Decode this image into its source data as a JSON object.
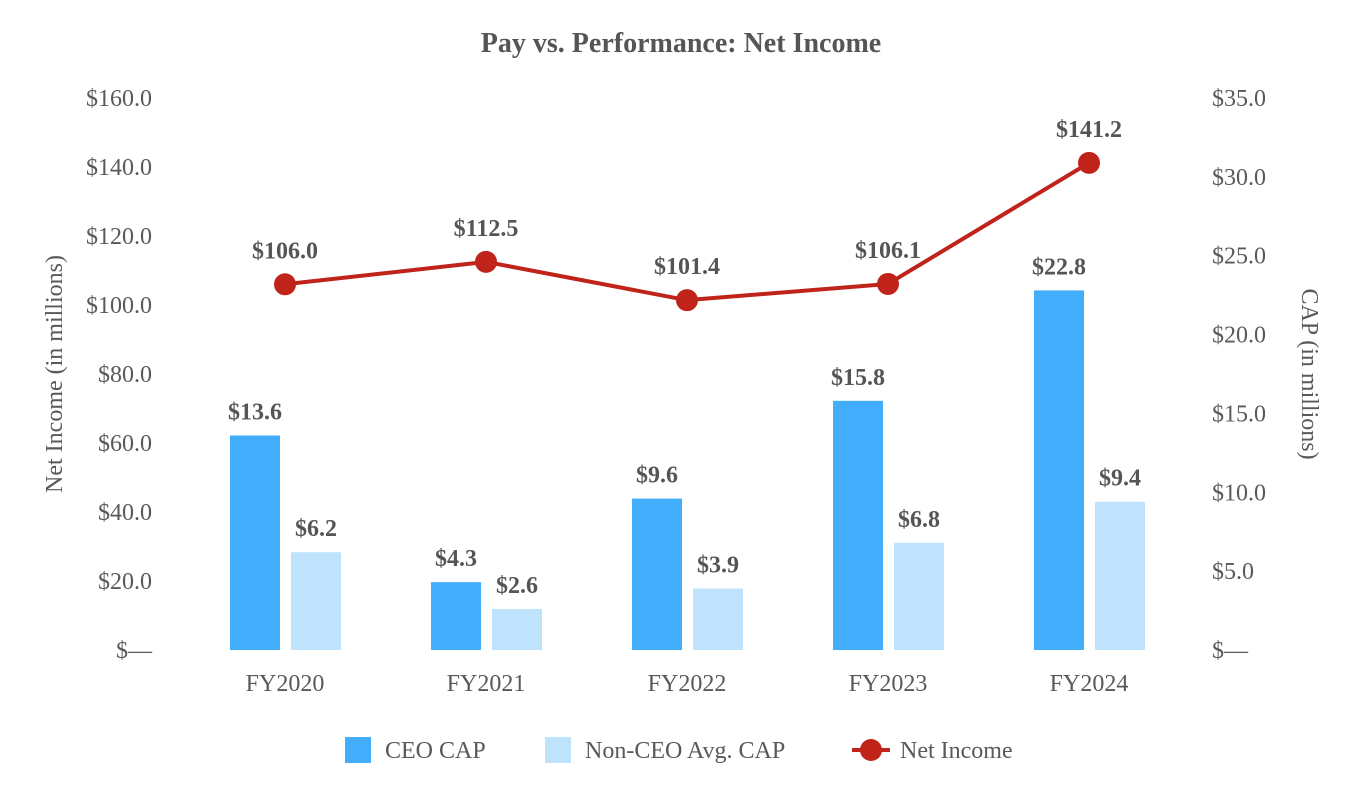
{
  "chart_data": {
    "type": "bar",
    "title": "Pay vs. Performance: Net Income",
    "categories": [
      "FY2020",
      "FY2021",
      "FY2022",
      "FY2023",
      "FY2024"
    ],
    "y_left": {
      "label": "Net Income (in millions)",
      "ylim": [
        0,
        160
      ],
      "ticks": [
        0,
        20,
        40,
        60,
        80,
        100,
        120,
        140,
        160
      ],
      "tick_labels": [
        "$—",
        "$20.0",
        "$40.0",
        "$60.0",
        "$80.0",
        "$100.0",
        "$120.0",
        "$140.0",
        "$160.0"
      ]
    },
    "y_right": {
      "label": "CAP (in millions)",
      "ylim": [
        0,
        35
      ],
      "ticks": [
        0,
        5,
        10,
        15,
        20,
        25,
        30,
        35
      ],
      "tick_labels": [
        "$—",
        "$5.0",
        "$10.0",
        "$15.0",
        "$20.0",
        "$25.0",
        "$30.0",
        "$35.0"
      ]
    },
    "series": [
      {
        "name": "CEO CAP",
        "type": "bar",
        "axis": "right",
        "color": "#42adfb",
        "values": [
          13.6,
          4.3,
          9.6,
          15.8,
          22.8
        ],
        "labels": [
          "$13.6",
          "$4.3",
          "$9.6",
          "$15.8",
          "$22.8"
        ]
      },
      {
        "name": "Non-CEO Avg. CAP",
        "type": "bar",
        "axis": "right",
        "color": "#bfe3fd",
        "values": [
          6.2,
          2.6,
          3.9,
          6.8,
          9.4
        ],
        "labels": [
          "$6.2",
          "$2.6",
          "$3.9",
          "$6.8",
          "$9.4"
        ]
      },
      {
        "name": "Net Income",
        "type": "line",
        "axis": "left",
        "color": "#c0231a",
        "values": [
          106.0,
          112.5,
          101.4,
          106.1,
          141.2
        ],
        "labels": [
          "$106.0",
          "$112.5",
          "$101.4",
          "$106.1",
          "$141.2"
        ]
      }
    ],
    "legend": [
      "CEO CAP",
      "Non-CEO Avg. CAP",
      "Net Income"
    ],
    "legend_position": "bottom",
    "grid": false
  }
}
